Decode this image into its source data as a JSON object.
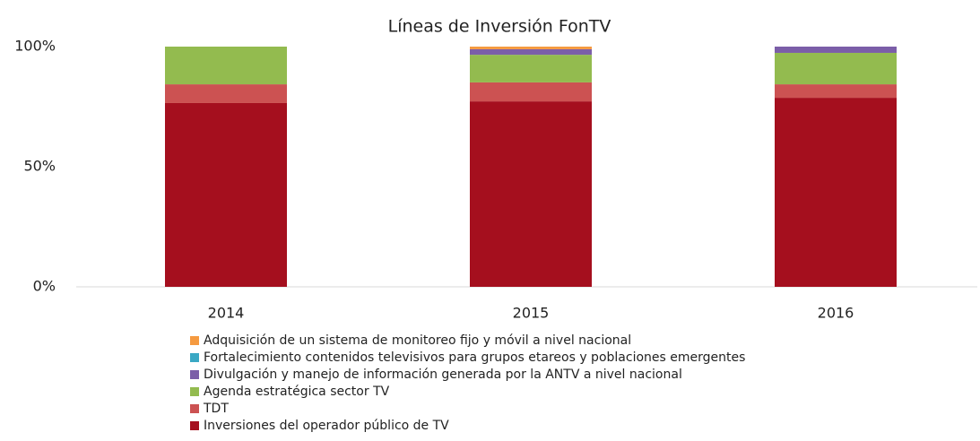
{
  "chart_data": {
    "type": "stacked_bar",
    "title": "Líneas de Inversión FonTV",
    "categories": [
      "2014",
      "2015",
      "2016"
    ],
    "series": [
      {
        "name": "Inversiones del operador público de TV",
        "color": "#a50f1e",
        "values": [
          76.5,
          77.2,
          78.7
        ]
      },
      {
        "name": "TDT",
        "color": "#cc5252",
        "values": [
          7.8,
          7.9,
          5.6
        ]
      },
      {
        "name": "Agenda estratégica sector TV",
        "color": "#93bb4f",
        "values": [
          15.7,
          11.5,
          13.1
        ]
      },
      {
        "name": "Divulgación y manejo de información generada por la ANTV a nivel nacional",
        "color": "#7b5ea8",
        "values": [
          0,
          2.3,
          2.6
        ]
      },
      {
        "name": "Fortalecimiento contenidos televisivos para grupos etareos y poblaciones emergentes",
        "color": "#3aa8c4",
        "values": [
          0,
          0,
          0
        ]
      },
      {
        "name": "Adquisición de un sistema de monitoreo fijo y móvil a nivel nacional",
        "color": "#f59a40",
        "values": [
          0,
          1.1,
          0
        ]
      }
    ],
    "ylim": [
      0,
      100
    ],
    "yticks": [
      {
        "value": 0,
        "label": "0%"
      },
      {
        "value": 50,
        "label": "50%"
      },
      {
        "value": 100,
        "label": "100%"
      }
    ],
    "grid": false
  }
}
